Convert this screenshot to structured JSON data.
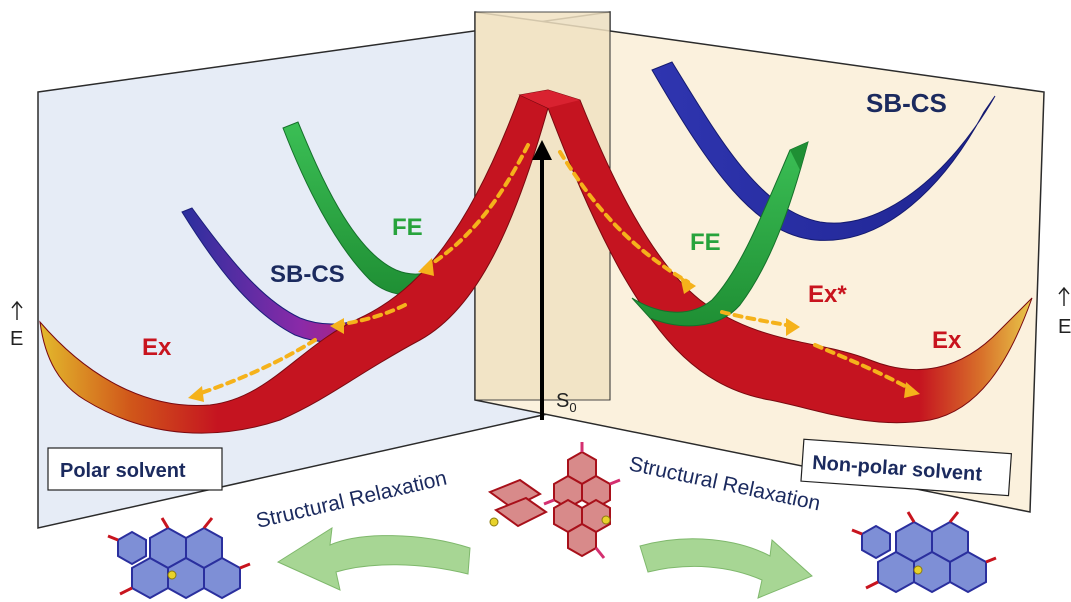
{
  "labels": {
    "fe_left": "FE",
    "fe_right": "FE",
    "sbcs_left": "SB-CS",
    "sbcs_right": "SB-CS",
    "ex_left": "Ex",
    "ex_right": "Ex",
    "ex_star": "Ex*",
    "energy_left": "E",
    "energy_right": "E",
    "ground_state": "S",
    "ground_state_sub": "0",
    "polar": "Polar solvent",
    "nonpolar": "Non-polar solvent",
    "relax_left": "Structural Relaxation",
    "relax_right": "Structural Relaxation"
  },
  "colors": {
    "left_panel": "#e6ecf6",
    "right_panel": "#fbf1dd",
    "center_panel": "#f4e6c9",
    "ex_red": "#c8141e",
    "fe_green": "#27a33c",
    "sbcs_blue": "#2a2f9e",
    "arrow_orange": "#f5b21b",
    "label_navy": "#1b2a5e",
    "relax_green": "#9fd28c"
  }
}
